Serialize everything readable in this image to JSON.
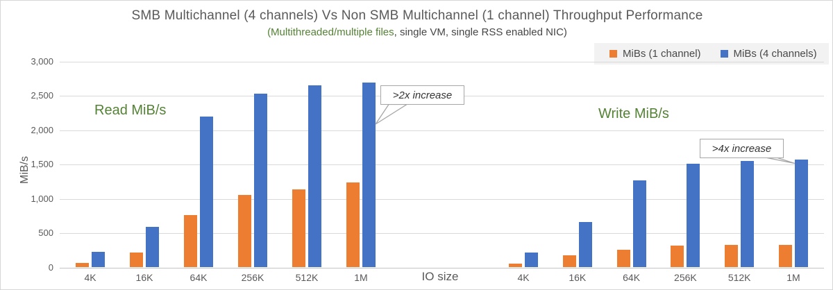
{
  "subtitle": {
    "highlight": "(Multithreaded/multiple files",
    "rest": ", single VM, single RSS enabled NIC)"
  },
  "legend": [
    {
      "label": "MiBs (1 channel)",
      "color": "#ED7D31"
    },
    {
      "label": "MiBs (4 channels)",
      "color": "#4472C4"
    }
  ],
  "section_labels": {
    "read": "Read MiB/s",
    "write": "Write MiB/s"
  },
  "annotations": [
    {
      "text": ">2x increase",
      "points_to": "Read 1M, 4 channels bar"
    },
    {
      "text": ">4x increase",
      "points_to": "Write 1M, 4 channels bar"
    }
  ],
  "colors": {
    "orange": "#ED7D31",
    "blue": "#4472C4",
    "green": "#548235",
    "gridline": "#D9D9D9",
    "text": "#595959",
    "legend_bg": "#F2F2F2"
  },
  "chart_data": {
    "type": "bar",
    "title": "SMB Multichannel (4 channels) Vs Non SMB Multichannel (1 channel) Throughput Performance",
    "subtitle": "(Multithreaded/multiple files, single VM, single RSS enabled NIC)",
    "xlabel": "IO size",
    "ylabel": "MiB/s",
    "ylim": [
      0,
      3000
    ],
    "ytick_step": 500,
    "grid": true,
    "legend_position": "top-right",
    "categories": [
      "4K",
      "16K",
      "64K",
      "256K",
      "512K",
      "1M"
    ],
    "groups": [
      {
        "name": "Read MiB/s",
        "series": [
          {
            "name": "MiBs (1 channel)",
            "values": [
              70,
              220,
              760,
              1060,
              1140,
              1240
            ]
          },
          {
            "name": "MiBs (4 channels)",
            "values": [
              230,
              590,
              2200,
              2530,
              2650,
              2690
            ]
          }
        ]
      },
      {
        "name": "Write MiB/s",
        "series": [
          {
            "name": "MiBs (1 channel)",
            "values": [
              55,
              175,
              260,
              320,
              330,
              330
            ]
          },
          {
            "name": "MiBs (4 channels)",
            "values": [
              215,
              665,
              1270,
              1515,
              1555,
              1570
            ]
          }
        ]
      }
    ]
  }
}
